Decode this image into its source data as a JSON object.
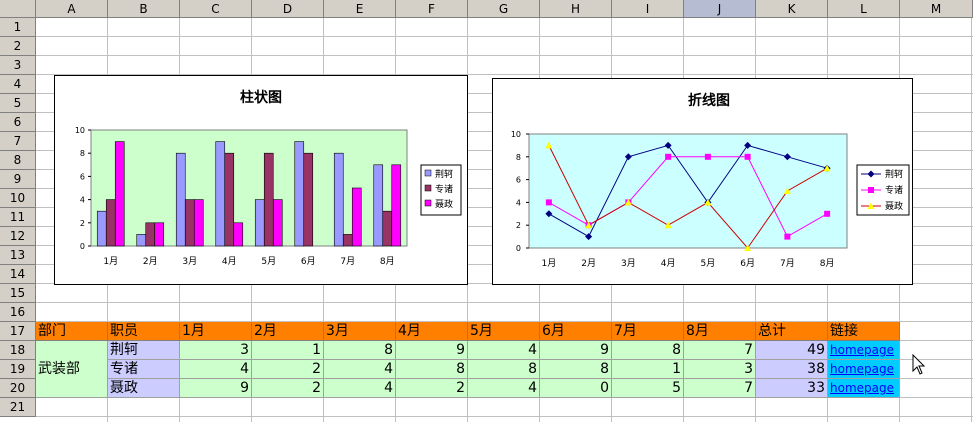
{
  "columns": [
    "A",
    "B",
    "C",
    "D",
    "E",
    "F",
    "G",
    "H",
    "I",
    "J",
    "K",
    "L",
    "M"
  ],
  "selected_column": "J",
  "rows": [
    "1",
    "2",
    "3",
    "4",
    "5",
    "6",
    "7",
    "8",
    "9",
    "10",
    "11",
    "12",
    "13",
    "14",
    "15",
    "16",
    "17",
    "18",
    "19",
    "20",
    "21"
  ],
  "table": {
    "headers": [
      "部门",
      "职员",
      "1月",
      "2月",
      "3月",
      "4月",
      "5月",
      "6月",
      "7月",
      "8月",
      "总计",
      "链接"
    ],
    "department": "武装部",
    "employees": [
      {
        "name": "荆轲",
        "values": [
          3,
          1,
          8,
          9,
          4,
          9,
          8,
          7
        ],
        "total": 49,
        "link": "homepage"
      },
      {
        "name": "专诸",
        "values": [
          4,
          2,
          4,
          8,
          8,
          8,
          1,
          3
        ],
        "total": 38,
        "link": "homepage"
      },
      {
        "name": "聂政",
        "values": [
          9,
          2,
          4,
          2,
          4,
          0,
          5,
          7
        ],
        "total": 33,
        "link": "homepage"
      }
    ]
  },
  "colors": {
    "series1": "#9999ff",
    "series2": "#993366",
    "series3": "#ff00ff",
    "line1": "#000080",
    "line2": "#ff00ff",
    "line3": "#ffff00",
    "bar_plot_bg": "#ccffcc",
    "line_plot_bg": "#ccffff",
    "header_bg": "#ff8000",
    "link_bg": "#00ccff"
  },
  "chart_data": [
    {
      "type": "bar",
      "title": "柱状图",
      "categories": [
        "1月",
        "2月",
        "3月",
        "4月",
        "5月",
        "6月",
        "7月",
        "8月"
      ],
      "series": [
        {
          "name": "荆轲",
          "values": [
            3,
            1,
            8,
            9,
            4,
            9,
            8,
            7
          ]
        },
        {
          "name": "专诸",
          "values": [
            4,
            2,
            4,
            8,
            8,
            8,
            1,
            3
          ]
        },
        {
          "name": "聂政",
          "values": [
            9,
            2,
            4,
            2,
            4,
            0,
            5,
            7
          ]
        }
      ],
      "yticks": [
        "0",
        "2",
        "4",
        "6",
        "8",
        "10"
      ],
      "ylim": [
        0,
        10
      ],
      "grid": false,
      "legend": "right"
    },
    {
      "type": "line",
      "title": "折线图",
      "categories": [
        "1月",
        "2月",
        "3月",
        "4月",
        "5月",
        "6月",
        "7月",
        "8月"
      ],
      "series": [
        {
          "name": "荆轲",
          "values": [
            3,
            1,
            8,
            9,
            4,
            9,
            8,
            7
          ],
          "marker": "diamond"
        },
        {
          "name": "专诸",
          "values": [
            4,
            2,
            4,
            8,
            8,
            8,
            1,
            3
          ],
          "marker": "square"
        },
        {
          "name": "聂政",
          "values": [
            9,
            2,
            4,
            2,
            4,
            0,
            5,
            7
          ],
          "marker": "triangle"
        }
      ],
      "yticks": [
        "0",
        "2",
        "4",
        "6",
        "8",
        "10"
      ],
      "ylim": [
        0,
        10
      ],
      "grid": false,
      "legend": "right"
    }
  ]
}
